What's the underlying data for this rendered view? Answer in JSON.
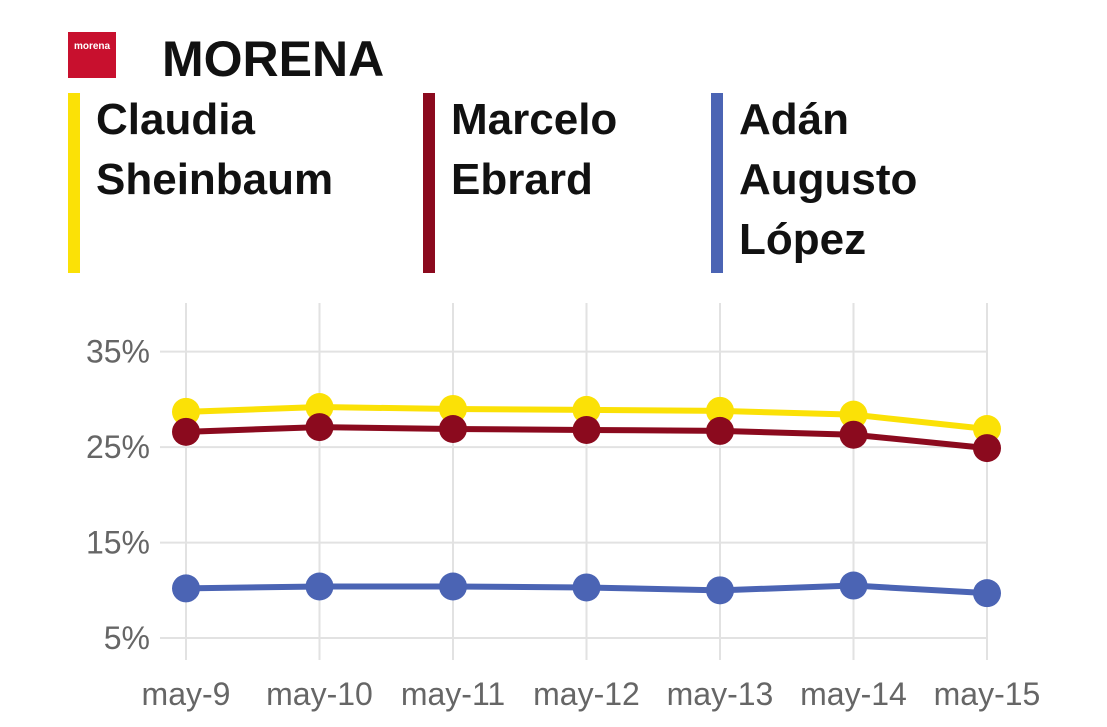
{
  "logo_text": "morena",
  "chart_data": {
    "type": "line",
    "title": "MORENA",
    "categories": [
      "may-9",
      "may-10",
      "may-11",
      "may-12",
      "may-13",
      "may-14",
      "may-15"
    ],
    "series": [
      {
        "name": "Claudia Sheinbaum",
        "color": "#fbe106",
        "values": [
          28.7,
          29.2,
          29.0,
          28.9,
          28.8,
          28.4,
          26.9
        ]
      },
      {
        "name": "Marcelo Ebrard",
        "color": "#8b0a1e",
        "values": [
          26.6,
          27.1,
          26.9,
          26.8,
          26.7,
          26.3,
          24.9
        ]
      },
      {
        "name": "Adán Augusto López",
        "color": "#4b64b4",
        "values": [
          10.2,
          10.4,
          10.4,
          10.3,
          10.0,
          10.5,
          9.7
        ]
      }
    ],
    "ylim": [
      2.7,
      40.1
    ],
    "yticks": [
      {
        "value": 5,
        "label": "5%"
      },
      {
        "value": 15,
        "label": "15%"
      },
      {
        "value": 25,
        "label": "25%"
      },
      {
        "value": 35,
        "label": "35%"
      }
    ],
    "grid": true
  }
}
